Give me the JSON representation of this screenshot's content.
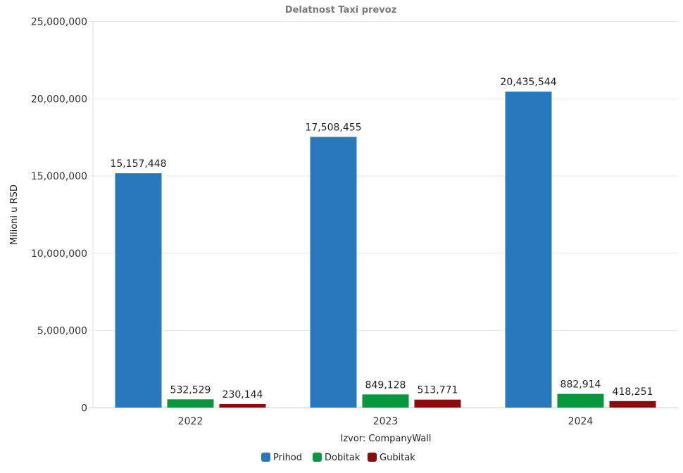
{
  "chart_data": {
    "type": "bar",
    "title": "Delatnost Taxi prevoz",
    "xlabel": "Izvor: CompanyWall",
    "ylabel": "Milioni u RSD",
    "ylim": [
      0,
      25000000
    ],
    "yticks": [
      0,
      5000000,
      10000000,
      15000000,
      20000000,
      25000000
    ],
    "ytick_labels": [
      "0",
      "5,000,000",
      "10,000,000",
      "15,000,000",
      "20,000,000",
      "25,000,000"
    ],
    "grid": true,
    "legend_position": "bottom",
    "categories": [
      "2022",
      "2023",
      "2024"
    ],
    "series": [
      {
        "name": "Prihod",
        "color": "#2878bd",
        "values": [
          15157448,
          17508455,
          20435544
        ],
        "labels": [
          "15,157,448",
          "17,508,455",
          "20,435,544"
        ]
      },
      {
        "name": "Dobitak",
        "color": "#08973f",
        "values": [
          532529,
          849128,
          882914
        ],
        "labels": [
          "532,529",
          "849,128",
          "882,914"
        ]
      },
      {
        "name": "Gubitak",
        "color": "#8e0a0f",
        "values": [
          230144,
          513771,
          418251
        ],
        "labels": [
          "230,144",
          "513,771",
          "418,251"
        ]
      }
    ]
  }
}
